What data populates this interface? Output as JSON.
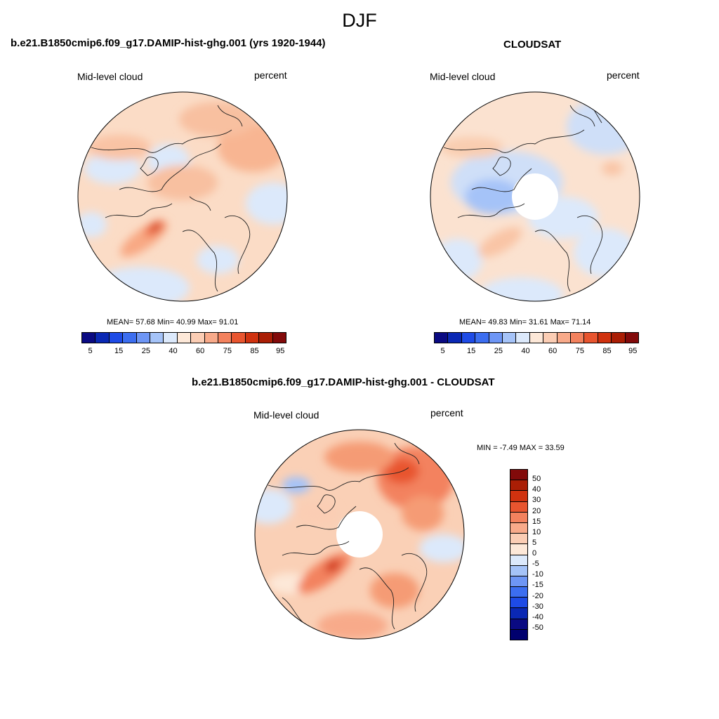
{
  "season": "DJF",
  "panels": {
    "model": {
      "title": "b.e21.B1850cmip6.f09_g17.DAMIP-hist-ghg.001 (yrs 1920-1944)",
      "variable": "Mid-level cloud",
      "units": "percent",
      "stats_text": "MEAN=  57.68  Min=  40.99  Max=  91.01",
      "stats": {
        "mean": 57.68,
        "min": 40.99,
        "max": 91.01
      },
      "colorbar_ticks": [
        "5",
        "15",
        "25",
        "40",
        "60",
        "75",
        "85",
        "95"
      ]
    },
    "obs": {
      "title": "CLOUDSAT",
      "variable": "Mid-level cloud",
      "units": "percent",
      "stats_text": "MEAN=  49.83  Min=  31.61  Max=  71.14",
      "stats": {
        "mean": 49.83,
        "min": 31.61,
        "max": 71.14
      },
      "colorbar_ticks": [
        "5",
        "15",
        "25",
        "40",
        "60",
        "75",
        "85",
        "95"
      ]
    },
    "diff": {
      "title": "b.e21.B1850cmip6.f09_g17.DAMIP-hist-ghg.001 - CLOUDSAT",
      "variable": "Mid-level cloud",
      "units": "percent",
      "stats_text": "MIN =  -7.49 MAX =  33.59",
      "stats": {
        "min": -7.49,
        "max": 33.59
      },
      "colorbar_ticks": [
        "50",
        "40",
        "30",
        "20",
        "15",
        "10",
        "5",
        "0",
        "-5",
        "-10",
        "-15",
        "-20",
        "-30",
        "-40",
        "-50"
      ]
    }
  },
  "colors": {
    "abs_scale": [
      "#0a0a82",
      "#0a28b4",
      "#1e4be6",
      "#3c6ef0",
      "#6e96f5",
      "#a5c3f8",
      "#dce9fb",
      "#fde8d8",
      "#fbcdb4",
      "#f8aa8a",
      "#f3825e",
      "#e8552f",
      "#d0320f",
      "#aa1e05",
      "#820a0a"
    ],
    "diff_scale": [
      "#0a0a82",
      "#0a28b4",
      "#1e4be6",
      "#3c6ef0",
      "#6e96f5",
      "#a5c3f8",
      "#dce9fb",
      "#fde8d8",
      "#fbcdb4",
      "#f8aa8a",
      "#f3825e",
      "#e8552f",
      "#d0320f",
      "#aa1e05",
      "#820a0a"
    ],
    "map_base_model": "#fbd9c3",
    "map_base_obs": "#fbe1cf",
    "map_base_diff": "#f9c8ac"
  }
}
